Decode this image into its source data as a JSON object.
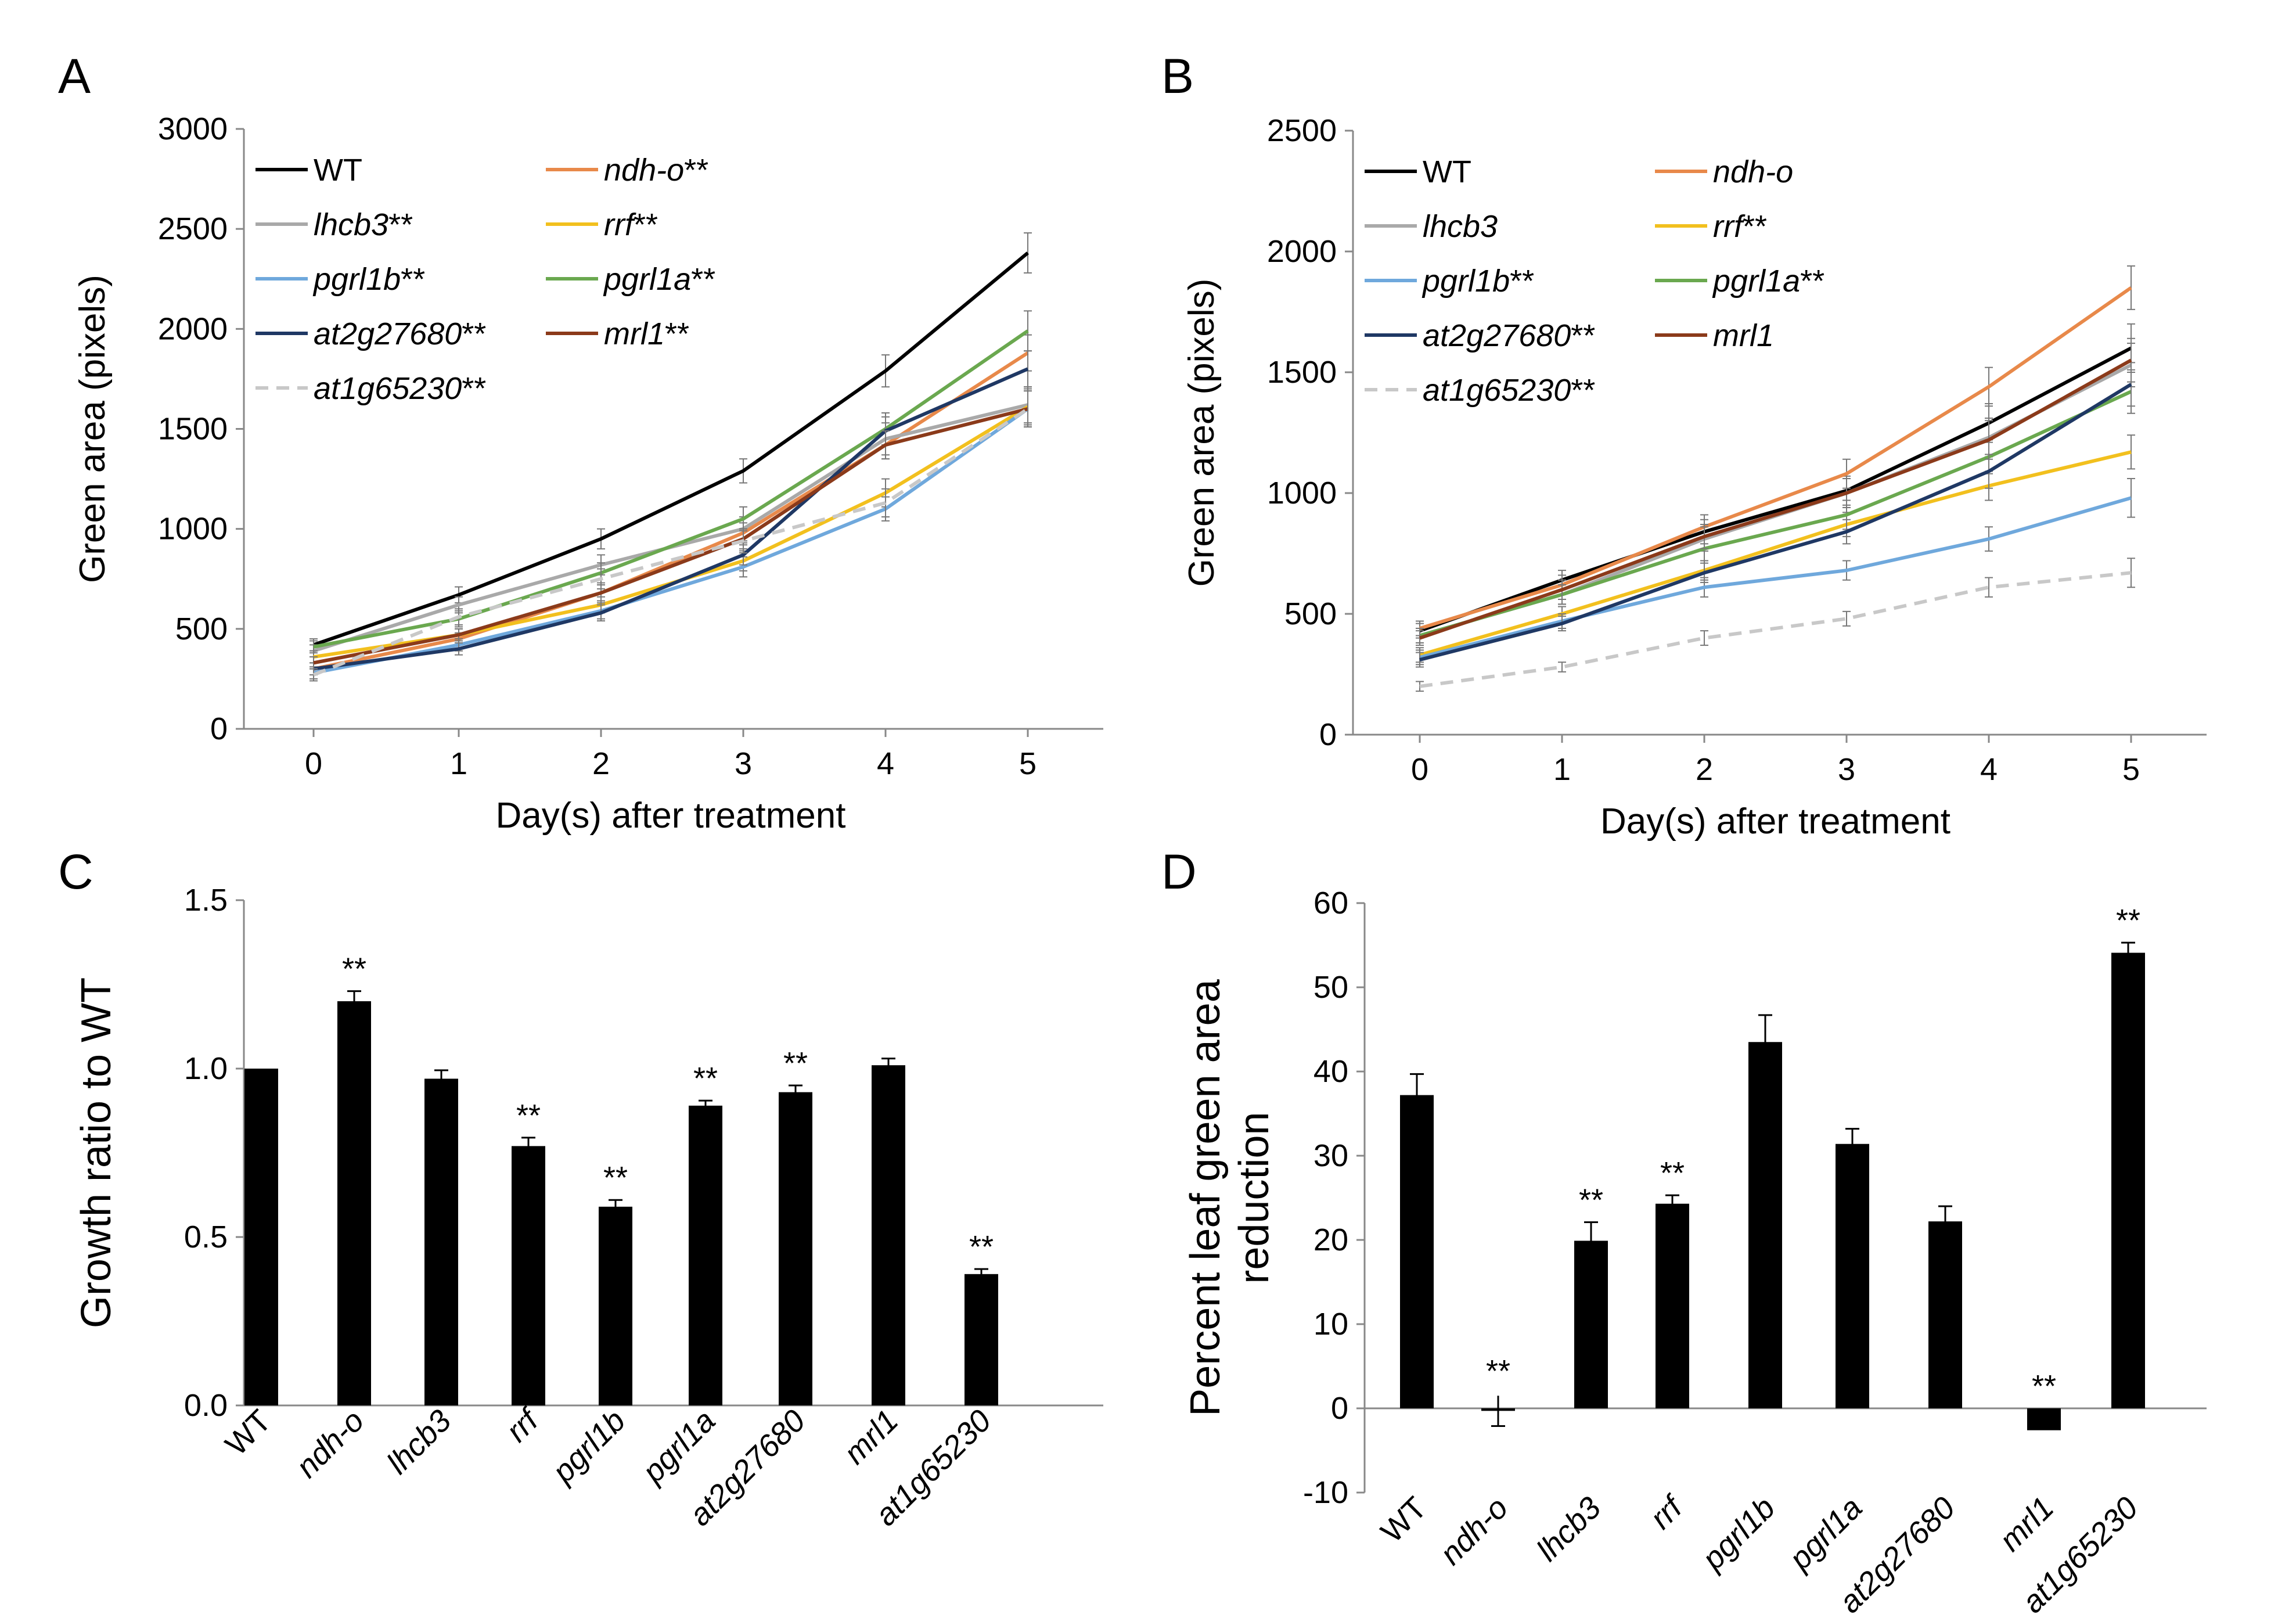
{
  "chart_data": [
    {
      "panel": "A",
      "type": "line",
      "ylabel": "Green area (pixels)",
      "xlabel": "Day(s) after treatment",
      "x": [
        0,
        1,
        2,
        3,
        4,
        5
      ],
      "ylim": [
        0,
        3000
      ],
      "yticks": [
        0,
        500,
        1000,
        1500,
        2000,
        2500,
        3000
      ],
      "series": [
        {
          "name": "WT",
          "italic": false,
          "stars": "",
          "color": "#000000",
          "dashed": false,
          "values": [
            420,
            670,
            950,
            1290,
            1790,
            2380
          ],
          "errors": [
            30,
            40,
            50,
            60,
            80,
            100
          ]
        },
        {
          "name": "ndh-o",
          "italic": true,
          "stars": "**",
          "color": "#E8894A",
          "dashed": false,
          "values": [
            300,
            450,
            680,
            980,
            1420,
            1880
          ],
          "errors": [
            30,
            30,
            40,
            50,
            70,
            90
          ]
        },
        {
          "name": "lhcb3",
          "italic": true,
          "stars": "**",
          "color": "#A9A9A9",
          "dashed": false,
          "values": [
            390,
            620,
            820,
            1000,
            1450,
            1620
          ],
          "errors": [
            30,
            40,
            50,
            60,
            80,
            90
          ]
        },
        {
          "name": "rrf",
          "italic": true,
          "stars": "**",
          "color": "#F2C01E",
          "dashed": false,
          "values": [
            360,
            470,
            620,
            840,
            1180,
            1610
          ],
          "errors": [
            30,
            30,
            40,
            50,
            70,
            90
          ]
        },
        {
          "name": "pgrl1b",
          "italic": true,
          "stars": "**",
          "color": "#6FA8DC",
          "dashed": false,
          "values": [
            280,
            420,
            590,
            810,
            1100,
            1600
          ],
          "errors": [
            30,
            30,
            40,
            50,
            60,
            90
          ]
        },
        {
          "name": "pgrl1a",
          "italic": true,
          "stars": "**",
          "color": "#6AA84F",
          "dashed": false,
          "values": [
            410,
            550,
            780,
            1050,
            1500,
            1990
          ],
          "errors": [
            30,
            40,
            50,
            60,
            80,
            100
          ]
        },
        {
          "name": "at2g27680",
          "italic": true,
          "stars": "**",
          "color": "#1F3864",
          "dashed": false,
          "values": [
            300,
            400,
            580,
            870,
            1490,
            1800
          ],
          "errors": [
            30,
            30,
            40,
            50,
            70,
            90
          ]
        },
        {
          "name": "mrl1",
          "italic": true,
          "stars": "**",
          "color": "#8B3A1A",
          "dashed": false,
          "values": [
            330,
            470,
            680,
            950,
            1420,
            1600
          ],
          "errors": [
            30,
            30,
            40,
            50,
            70,
            90
          ]
        },
        {
          "name": "at1g65230",
          "italic": true,
          "stars": "**",
          "color": "#C8C8C8",
          "dashed": true,
          "values": [
            270,
            560,
            750,
            940,
            1130,
            1600
          ],
          "errors": [
            30,
            40,
            50,
            60,
            70,
            90
          ]
        }
      ]
    },
    {
      "panel": "B",
      "type": "line",
      "ylabel": "Green area (pixels)",
      "xlabel": "Day(s) after treatment",
      "x": [
        0,
        1,
        2,
        3,
        4,
        5
      ],
      "ylim": [
        0,
        2500
      ],
      "yticks": [
        0,
        500,
        1000,
        1500,
        2000,
        2500
      ],
      "series": [
        {
          "name": "WT",
          "italic": false,
          "stars": "",
          "color": "#000000",
          "dashed": false,
          "values": [
            430,
            640,
            840,
            1010,
            1290,
            1600
          ],
          "errors": [
            30,
            40,
            50,
            60,
            80,
            100
          ]
        },
        {
          "name": "ndh-o",
          "italic": true,
          "stars": "",
          "color": "#E8894A",
          "dashed": false,
          "values": [
            440,
            620,
            860,
            1080,
            1440,
            1850
          ],
          "errors": [
            30,
            40,
            50,
            60,
            80,
            90
          ]
        },
        {
          "name": "lhcb3",
          "italic": true,
          "stars": "",
          "color": "#A9A9A9",
          "dashed": false,
          "values": [
            410,
            580,
            810,
            1000,
            1230,
            1530
          ],
          "errors": [
            30,
            40,
            50,
            60,
            80,
            90
          ]
        },
        {
          "name": "rrf",
          "italic": true,
          "stars": "**",
          "color": "#F2C01E",
          "dashed": false,
          "values": [
            330,
            500,
            680,
            870,
            1030,
            1170
          ],
          "errors": [
            30,
            30,
            40,
            50,
            60,
            70
          ]
        },
        {
          "name": "pgrl1b",
          "italic": true,
          "stars": "**",
          "color": "#6FA8DC",
          "dashed": false,
          "values": [
            320,
            470,
            610,
            680,
            810,
            980
          ],
          "errors": [
            30,
            30,
            40,
            40,
            50,
            80
          ]
        },
        {
          "name": "pgrl1a",
          "italic": true,
          "stars": "**",
          "color": "#6AA84F",
          "dashed": false,
          "values": [
            410,
            580,
            770,
            910,
            1150,
            1420
          ],
          "errors": [
            30,
            40,
            50,
            60,
            70,
            90
          ]
        },
        {
          "name": "at2g27680",
          "italic": true,
          "stars": "**",
          "color": "#1F3864",
          "dashed": false,
          "values": [
            310,
            460,
            670,
            840,
            1090,
            1450
          ],
          "errors": [
            30,
            30,
            40,
            50,
            70,
            90
          ]
        },
        {
          "name": "mrl1",
          "italic": true,
          "stars": "",
          "color": "#8B3A1A",
          "dashed": false,
          "values": [
            400,
            600,
            820,
            1000,
            1220,
            1550
          ],
          "errors": [
            30,
            40,
            50,
            60,
            80,
            90
          ]
        },
        {
          "name": "at1g65230",
          "italic": true,
          "stars": "**",
          "color": "#C8C8C8",
          "dashed": true,
          "values": [
            200,
            280,
            400,
            480,
            610,
            670
          ],
          "errors": [
            20,
            20,
            30,
            30,
            40,
            60
          ]
        }
      ]
    },
    {
      "panel": "C",
      "type": "bar",
      "ylabel": "Growth ratio to WT",
      "ylim": [
        0,
        1.5
      ],
      "yticks": [
        "0.0",
        "0.5",
        "1.0",
        "1.5"
      ],
      "categories": [
        "WT",
        "ndh-o",
        "lhcb3",
        "rrf",
        "pgrl1b",
        "pgrl1a",
        "at2g27680",
        "mrl1",
        "at1g65230"
      ],
      "italic": [
        false,
        true,
        true,
        true,
        true,
        true,
        true,
        true,
        true
      ],
      "values": [
        1.0,
        1.2,
        0.97,
        0.77,
        0.59,
        0.89,
        0.93,
        1.01,
        0.39
      ],
      "errors": [
        0,
        0.03,
        0.025,
        0.025,
        0.02,
        0.015,
        0.02,
        0.02,
        0.015
      ],
      "sig": [
        "",
        "**",
        "",
        "**",
        "**",
        "**",
        "**",
        "",
        "**"
      ]
    },
    {
      "panel": "D",
      "type": "bar",
      "ylabel": [
        "Percent leaf green area",
        "reduction"
      ],
      "ylim": [
        -10,
        60
      ],
      "yticks": [
        -10,
        0,
        10,
        20,
        30,
        40,
        50,
        60
      ],
      "categories": [
        "WT",
        "ndh-o",
        "lhcb3",
        "rrf",
        "pgrl1b",
        "pgrl1a",
        "at2g27680",
        "mrl1",
        "at1g65230"
      ],
      "italic": [
        false,
        true,
        true,
        true,
        true,
        true,
        true,
        true,
        true
      ],
      "values": [
        37.2,
        -0.3,
        19.9,
        24.3,
        43.5,
        31.4,
        22.2,
        -2.6,
        54.1
      ],
      "errors": [
        2.5,
        1.8,
        2.2,
        1.0,
        3.2,
        1.8,
        1.8,
        0,
        1.2
      ],
      "sig": [
        "",
        "**",
        "**",
        "**",
        "",
        "",
        "",
        "**",
        "**"
      ]
    }
  ]
}
